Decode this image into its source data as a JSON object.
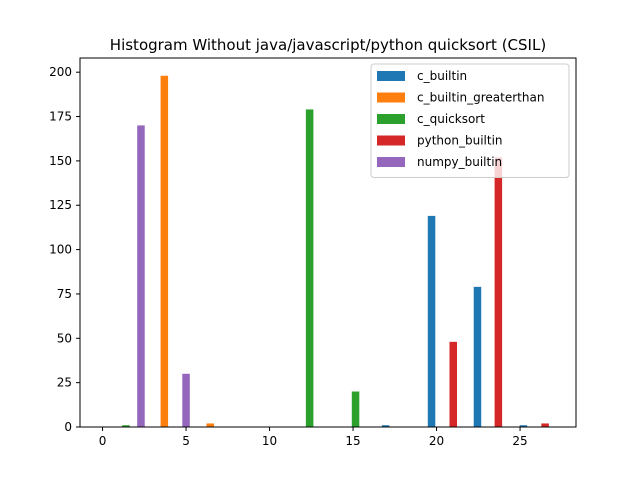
{
  "chart_data": {
    "type": "bar",
    "title": "Histogram Without java/javascript/python quicksort (CSIL)",
    "xlabel": "",
    "ylabel": "",
    "xlim": [
      -1.35,
      28.35
    ],
    "ylim": [
      0,
      208
    ],
    "xticks": [
      0,
      5,
      10,
      15,
      20,
      25
    ],
    "yticks": [
      0,
      25,
      50,
      75,
      100,
      125,
      150,
      175,
      200
    ],
    "bar_width": 0.45,
    "legend_position": "top-right",
    "grid": false,
    "series": [
      {
        "name": "c_builtin",
        "color": "#1f77b4",
        "points": [
          {
            "x": 16.95,
            "y": 1
          },
          {
            "x": 19.7,
            "y": 119
          },
          {
            "x": 22.45,
            "y": 79
          },
          {
            "x": 25.2,
            "y": 1
          }
        ]
      },
      {
        "name": "c_builtin_greaterthan",
        "color": "#ff7f0e",
        "points": [
          {
            "x": 3.7,
            "y": 198
          },
          {
            "x": 6.45,
            "y": 2
          }
        ]
      },
      {
        "name": "c_quicksort",
        "color": "#2ca02c",
        "points": [
          {
            "x": 1.4,
            "y": 1
          },
          {
            "x": 12.4,
            "y": 179
          },
          {
            "x": 15.15,
            "y": 20
          }
        ]
      },
      {
        "name": "python_builtin",
        "color": "#d62728",
        "points": [
          {
            "x": 21.0,
            "y": 48
          },
          {
            "x": 23.7,
            "y": 152
          },
          {
            "x": 26.5,
            "y": 2
          }
        ]
      },
      {
        "name": "numpy_builtin",
        "color": "#9467bd",
        "points": [
          {
            "x": 2.3,
            "y": 170
          },
          {
            "x": 5.0,
            "y": 30
          }
        ]
      }
    ]
  }
}
